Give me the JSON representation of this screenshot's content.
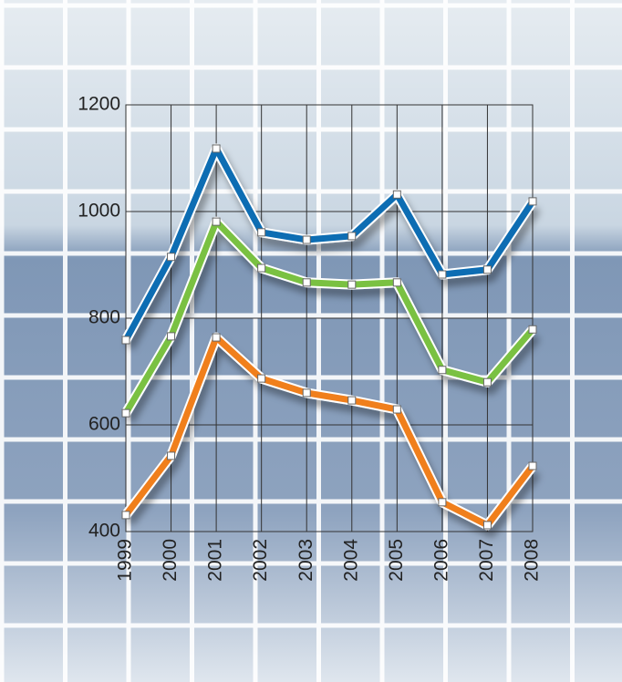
{
  "chart_data": {
    "type": "line",
    "categories": [
      "1999",
      "2000",
      "2001",
      "2002",
      "2003",
      "2004",
      "2005",
      "2006",
      "2007",
      "2008"
    ],
    "series": [
      {
        "color": "#0f6db3",
        "values": [
          759,
          915,
          1118,
          961,
          947,
          954,
          1032,
          882,
          891,
          1019
        ]
      },
      {
        "color": "#7ac142",
        "values": [
          622,
          766,
          981,
          894,
          867,
          863,
          867,
          703,
          680,
          779
        ]
      },
      {
        "color": "#f07f1f",
        "values": [
          431,
          542,
          764,
          687,
          660,
          646,
          629,
          455,
          412,
          523
        ]
      }
    ],
    "ylim": [
      400,
      1200
    ],
    "yticks": [
      400,
      600,
      800,
      1000,
      1200
    ],
    "grid": true
  }
}
